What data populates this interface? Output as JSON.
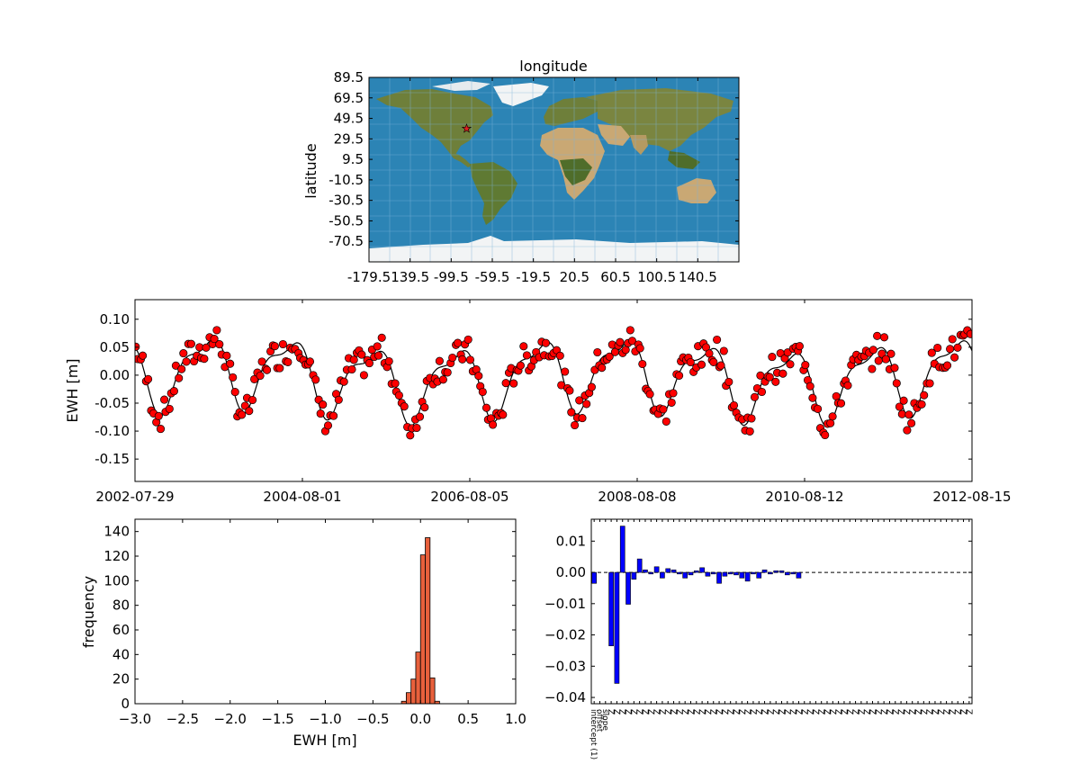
{
  "chart_data": [
    {
      "type": "map",
      "title": "longitude",
      "ylabel": "latitude",
      "xticks": [
        "-179.5",
        "139.5",
        "-99.5",
        "-59.5",
        "-19.5",
        "20.5",
        "60.5",
        "100.5",
        "140.5"
      ],
      "yticks": [
        "89.5",
        "69.5",
        "49.5",
        "29.5",
        "9.5",
        "-10.5",
        "-30.5",
        "-50.5",
        "-70.5"
      ],
      "marker": {
        "lon": -84.5,
        "lat": 39.5,
        "symbol": "star",
        "color": "#e02020"
      },
      "colors": {
        "ocean": "#2c84b5",
        "land": "#6e7f3a",
        "desert": "#c9a874",
        "ice": "#f2f4f5",
        "grid": "#7fb5d9"
      }
    },
    {
      "type": "scatter+line",
      "ylabel": "EWH [m]",
      "ylim": [
        -0.19,
        0.135
      ],
      "yticks": [
        "0.10",
        "0.05",
        "0.00",
        "-0.05",
        "-0.10",
        "-0.15"
      ],
      "xticks": [
        "2002-07-29",
        "2004-08-01",
        "2006-08-05",
        "2008-08-08",
        "2010-08-12",
        "2012-08-15"
      ],
      "x_range": [
        "2002-07-29",
        "2012-08-15"
      ],
      "point_color": "#ff0000",
      "line_color": "#000000"
    },
    {
      "type": "histogram",
      "xlabel": "EWH [m]",
      "ylabel": "frequency",
      "xlim": [
        -3.0,
        1.0
      ],
      "ylim": [
        0,
        150
      ],
      "xticks": [
        "−3.0",
        "−2.5",
        "−2.0",
        "−1.5",
        "−1.0",
        "−0.5",
        "0.0",
        "0.5",
        "1.0"
      ],
      "yticks": [
        "0",
        "20",
        "40",
        "60",
        "80",
        "100",
        "120",
        "140"
      ],
      "bin_width": 0.05,
      "bins": [
        {
          "x0": -0.2,
          "count": 2
        },
        {
          "x0": -0.15,
          "count": 9
        },
        {
          "x0": -0.1,
          "count": 20
        },
        {
          "x0": -0.05,
          "count": 42
        },
        {
          "x0": 0.0,
          "count": 121
        },
        {
          "x0": 0.05,
          "count": 135
        },
        {
          "x0": 0.1,
          "count": 21
        },
        {
          "x0": 0.15,
          "count": 2
        }
      ],
      "bar_color": "#e8603c"
    },
    {
      "type": "bar",
      "ylim": [
        -0.042,
        0.017
      ],
      "yticks": [
        "0.01",
        "0.00",
        "−0.01",
        "−0.02",
        "−0.03",
        "−0.04"
      ],
      "categories": [
        "intercept (1)",
        "offset",
        "slope",
        "Z",
        "Z",
        "Z",
        "Z",
        "Z",
        "Z",
        "Z",
        "Z",
        "Z",
        "Z",
        "Z",
        "Z",
        "Z",
        "Z",
        "Z",
        "Z",
        "Z",
        "Z",
        "Z",
        "Z",
        "Z",
        "Z",
        "Z",
        "Z",
        "Z",
        "Z",
        "Z",
        "Z",
        "Z",
        "Z",
        "Z",
        "Z",
        "Z",
        "Z",
        "Z",
        "Z",
        "Z",
        "Z",
        "Z",
        "Z",
        "Z",
        "Z",
        "Z",
        "Z",
        "Z",
        "Z",
        "Z",
        "Z",
        "Z",
        "Z",
        "Z",
        "Z",
        "Z",
        "Z",
        "Z",
        "Z",
        "Z",
        "Z",
        "Z",
        "Z",
        "Z",
        "Z",
        "Z",
        "Z"
      ],
      "values": [
        -0.0035,
        0.0,
        0.0,
        -0.0235,
        -0.0355,
        0.0148,
        -0.0102,
        -0.0022,
        0.0043,
        0.0008,
        -0.0005,
        0.0018,
        -0.0018,
        0.0012,
        0.0008,
        -0.0005,
        -0.0018,
        -0.0008,
        0.0005,
        0.0015,
        -0.0012,
        -0.0005,
        -0.0035,
        -0.0012,
        -0.0005,
        -0.0008,
        -0.0018,
        -0.0028,
        -0.0005,
        -0.0018,
        0.0008,
        -0.0005,
        0.0005,
        0.0005,
        -0.0008,
        -0.0005,
        -0.0018,
        0,
        0,
        0,
        0,
        0,
        0,
        0,
        0,
        0,
        0,
        0,
        0,
        0,
        0,
        0,
        0,
        0,
        0,
        0,
        0,
        0,
        0,
        0,
        0,
        0,
        0,
        0,
        0,
        0,
        0
      ],
      "bar_color": "#0000ff",
      "zero_line": "dashed"
    }
  ]
}
